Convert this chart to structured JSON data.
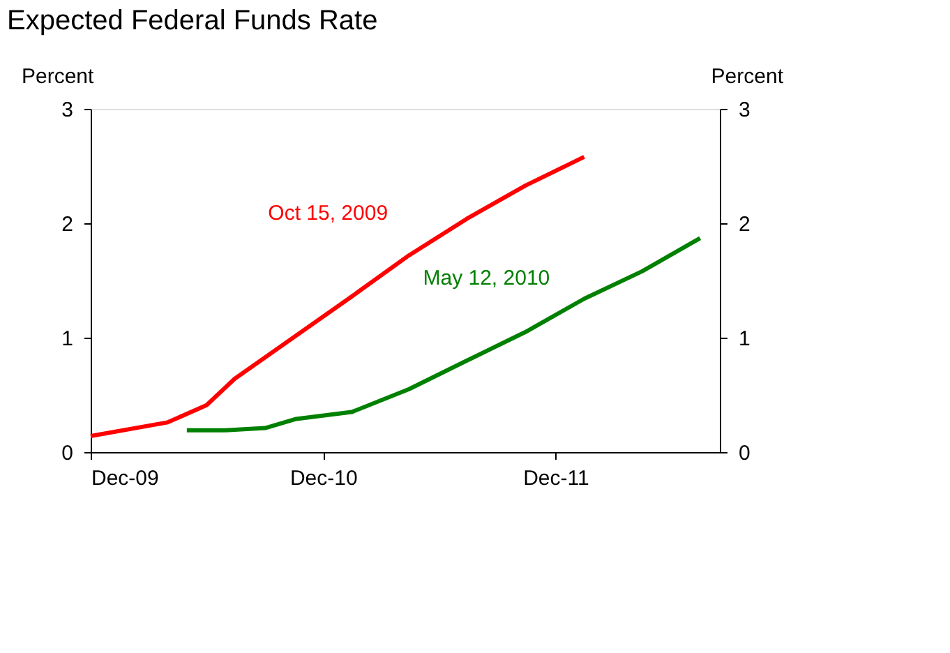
{
  "chart_data": {
    "type": "line",
    "title": "Expected Federal Funds Rate",
    "ylabel": "Percent",
    "y2label": "Percent",
    "xlim": [
      "2009-12-01",
      "2012-08-15"
    ],
    "xticks": [
      {
        "value": "2009-12-01",
        "label": "Dec-09"
      },
      {
        "value": "2010-12-01",
        "label": "Dec-10"
      },
      {
        "value": "2011-12-01",
        "label": "Dec-11"
      }
    ],
    "ylim": [
      0,
      3
    ],
    "yticks": [
      0,
      1,
      2,
      3
    ],
    "y2lim": [
      0,
      3
    ],
    "y2ticks": [
      0,
      1,
      2,
      3
    ],
    "grid": false,
    "marker": "none",
    "line_style": "solid",
    "series": [
      {
        "name": "Oct 15, 2009",
        "color": "#ff0000",
        "x": [
          "2009-12-01",
          "2010-04-01",
          "2010-06-01",
          "2010-07-15",
          "2011-01-15",
          "2011-04-15",
          "2011-07-15",
          "2011-10-15",
          "2012-01-15"
        ],
        "values": [
          0.14,
          0.26,
          0.41,
          0.64,
          1.36,
          1.72,
          2.04,
          2.33,
          2.58
        ]
      },
      {
        "name": "May 12, 2010",
        "color": "#008000",
        "x": [
          "2010-05-01",
          "2010-07-01",
          "2010-09-01",
          "2010-10-20",
          "2011-01-15",
          "2011-04-15",
          "2011-07-15",
          "2011-10-15",
          "2012-01-15",
          "2012-04-15",
          "2012-07-15"
        ],
        "values": [
          0.19,
          0.19,
          0.21,
          0.29,
          0.35,
          0.55,
          0.8,
          1.05,
          1.34,
          1.58,
          1.87
        ]
      }
    ]
  }
}
